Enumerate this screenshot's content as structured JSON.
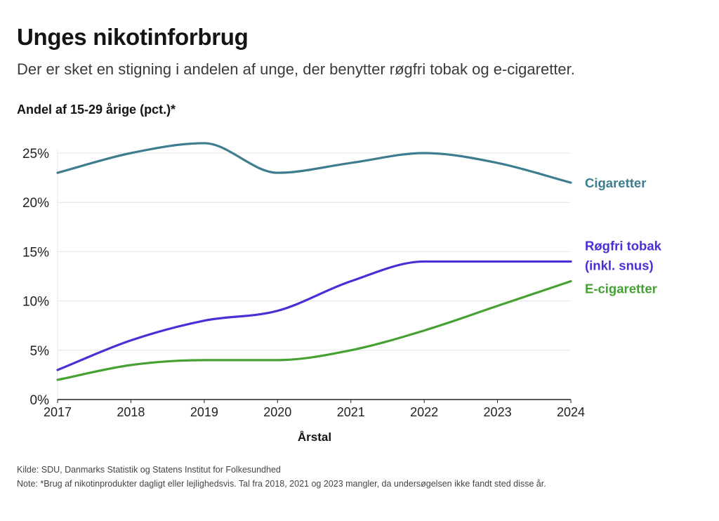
{
  "header": {
    "title": "Unges nikotinforbrug",
    "subtitle": "Der er sket en stigning i andelen af unge, der benytter røgfri tobak og e-cigaretter."
  },
  "footer": {
    "source": "Kilde: SDU, Danmarks Statistik og Statens Institut for Folkesundhed",
    "note": "Note: *Brug af nikotinprodukter dagligt eller lejlighedsvis. Tal fra 2018, 2021 og 2023 mangler, da undersøgelsen ikke fandt sted disse år."
  },
  "colors": {
    "cigaretter": "#3e7d8f",
    "rogfri": "#4a2fd6",
    "ecig": "#46a133",
    "grid": "#e4e4e4",
    "axis": "#222222"
  },
  "chart_data": {
    "type": "line",
    "title": "Unges nikotinforbrug",
    "ylabel": "Andel af 15-29 årige (pct.)*",
    "xlabel": "Årstal",
    "x": [
      2017,
      2018,
      2019,
      2020,
      2021,
      2022,
      2023,
      2024
    ],
    "xlim": [
      2017,
      2024
    ],
    "ylim": [
      0,
      25
    ],
    "yticks": [
      0,
      5,
      10,
      15,
      20,
      25
    ],
    "ytick_labels": [
      "0%",
      "5%",
      "10%",
      "15%",
      "20%",
      "25%"
    ],
    "xtick_labels": [
      "2017",
      "2018",
      "2019",
      "2020",
      "2021",
      "2022",
      "2023",
      "2024"
    ],
    "grid": true,
    "legend": "direct labels at line ends (right)",
    "series": [
      {
        "key": "cigaretter",
        "name": "Cigaretter",
        "label_lines": [
          "Cigaretter"
        ],
        "color": "#3e7d8f",
        "values": [
          23,
          25,
          26,
          23,
          24,
          25,
          24,
          22
        ]
      },
      {
        "key": "rogfri",
        "name": "Røgfri tobak (inkl. snus)",
        "label_lines": [
          "Røgfri tobak",
          "(inkl. snus)"
        ],
        "color": "#4a2fd6",
        "values": [
          3,
          6,
          8,
          9,
          12,
          14,
          14,
          14
        ]
      },
      {
        "key": "ecig",
        "name": "E-cigaretter",
        "label_lines": [
          "E-cigaretter"
        ],
        "color": "#46a133",
        "values": [
          2,
          3.5,
          4,
          4,
          5,
          7,
          9.5,
          12
        ]
      }
    ]
  }
}
